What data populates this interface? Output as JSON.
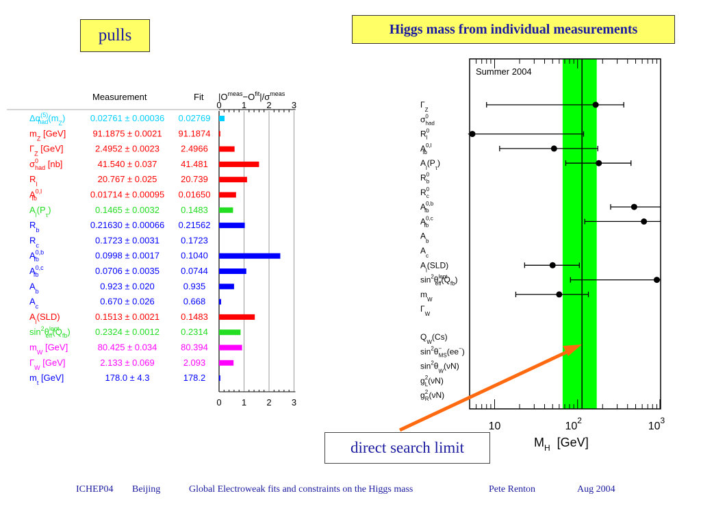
{
  "left_title": "pulls",
  "right_title": "Higgs mass from individual measurements",
  "annotation": "direct search limit",
  "footer": {
    "conf": "ICHEP04",
    "city": "Beijing",
    "talk": "Global Electroweak fits and constraints on the Higgs mass",
    "author": "Pete Renton",
    "date": "Aug 2004"
  },
  "colors": {
    "cyan": "#00d0ff",
    "red": "#ff0000",
    "green": "#22dd22",
    "blue": "#0000ff",
    "magenta": "#ff00ff",
    "band": "#00ff00"
  },
  "chart_data": [
    {
      "type": "table",
      "headers": {
        "measurement": "Measurement",
        "fit": "Fit",
        "pull_num": "|O",
        "meas_sup": "meas",
        "minus": "−O",
        "fit_sup": "fit",
        "slash": "|/σ",
        "meas_sup2": "meas"
      },
      "axis": {
        "range": [
          0,
          3
        ],
        "ticks": [
          "0",
          "1",
          "2",
          "3"
        ],
        "grid": true
      },
      "rows": [
        {
          "label": "Δα",
          "sup": "(5)",
          "sub": "had",
          "tail": "(m",
          "tail_sub": "Z",
          "tail_end": ")",
          "unit": "",
          "measurement": "0.02761 ± 0.00036",
          "fit": "0.02769",
          "pull": 0.22,
          "color": "cyan"
        },
        {
          "label": "m",
          "sup": "",
          "sub": "Z",
          "tail": "",
          "tail_sub": "",
          "tail_end": "",
          "unit": " [GeV]",
          "measurement": "91.1875 ± 0.0021",
          "fit": "91.1874",
          "pull": 0.05,
          "color": "red"
        },
        {
          "label": "Γ",
          "sup": "",
          "sub": "Z",
          "tail": "",
          "tail_sub": "",
          "tail_end": "",
          "unit": " [GeV]",
          "measurement": "2.4952 ± 0.0023",
          "fit": "2.4966",
          "pull": 0.62,
          "color": "red"
        },
        {
          "label": "σ",
          "sup": "0",
          "sub": "had",
          "tail": "",
          "tail_sub": "",
          "tail_end": "",
          "unit": " [nb]",
          "measurement": "41.540 ± 0.037",
          "fit": "41.481",
          "pull": 1.6,
          "color": "red"
        },
        {
          "label": "R",
          "sup": "",
          "sub": "l",
          "tail": "",
          "tail_sub": "",
          "tail_end": "",
          "unit": "",
          "measurement": "20.767 ± 0.025",
          "fit": "20.739",
          "pull": 1.12,
          "color": "red"
        },
        {
          "label": "A",
          "sup": "0,l",
          "sub": "fb",
          "tail": "",
          "tail_sub": "",
          "tail_end": "",
          "unit": "",
          "measurement": "0.01714 ± 0.00095",
          "fit": "0.01650",
          "pull": 0.68,
          "color": "red"
        },
        {
          "label": "A",
          "sup": "",
          "sub": "l",
          "tail": "(P",
          "tail_sub": "τ",
          "tail_end": ")",
          "unit": "",
          "measurement": "0.1465 ± 0.0032",
          "fit": "0.1483",
          "pull": 0.56,
          "color": "green"
        },
        {
          "label": "R",
          "sup": "",
          "sub": "b",
          "tail": "",
          "tail_sub": "",
          "tail_end": "",
          "unit": "",
          "measurement": "0.21630 ± 0.00066",
          "fit": "0.21562",
          "pull": 1.03,
          "color": "blue"
        },
        {
          "label": "R",
          "sup": "",
          "sub": "c",
          "tail": "",
          "tail_sub": "",
          "tail_end": "",
          "unit": "",
          "measurement": "0.1723 ± 0.0031",
          "fit": "0.1723",
          "pull": 0.0,
          "color": "blue"
        },
        {
          "label": "A",
          "sup": "0,b",
          "sub": "fb",
          "tail": "",
          "tail_sub": "",
          "tail_end": "",
          "unit": "",
          "measurement": "0.0998 ± 0.0017",
          "fit": "0.1040",
          "pull": 2.45,
          "color": "blue"
        },
        {
          "label": "A",
          "sup": "0,c",
          "sub": "fb",
          "tail": "",
          "tail_sub": "",
          "tail_end": "",
          "unit": "",
          "measurement": "0.0706 ± 0.0035",
          "fit": "0.0744",
          "pull": 1.09,
          "color": "blue"
        },
        {
          "label": "A",
          "sup": "",
          "sub": "b",
          "tail": "",
          "tail_sub": "",
          "tail_end": "",
          "unit": "",
          "measurement": "0.923 ± 0.020",
          "fit": "0.935",
          "pull": 0.6,
          "color": "blue"
        },
        {
          "label": "A",
          "sup": "",
          "sub": "c",
          "tail": "",
          "tail_sub": "",
          "tail_end": "",
          "unit": "",
          "measurement": "0.670 ± 0.026",
          "fit": "0.668",
          "pull": 0.08,
          "color": "blue"
        },
        {
          "label": "A",
          "sup": "",
          "sub": "l",
          "tail": "(SLD)",
          "tail_sub": "",
          "tail_end": "",
          "unit": "",
          "measurement": "0.1513 ± 0.0021",
          "fit": "0.1483",
          "pull": 1.43,
          "color": "red"
        },
        {
          "label": "sin",
          "sup": "2",
          "sub": "",
          "tail": "θ",
          "tail_sup": "lept",
          "tail_sub": "eff",
          "tail_end": "(Q",
          "tail2_sub": "fb",
          "tail2_end": ")",
          "unit": "",
          "measurement": "0.2324 ± 0.0012",
          "fit": "0.2314",
          "pull": 0.86,
          "color": "green"
        },
        {
          "label": "m",
          "sup": "",
          "sub": "W",
          "tail": "",
          "tail_sub": "",
          "tail_end": "",
          "unit": " [GeV]",
          "measurement": "80.425 ± 0.034",
          "fit": "80.394",
          "pull": 0.92,
          "color": "magenta"
        },
        {
          "label": "Γ",
          "sup": "",
          "sub": "W",
          "tail": "",
          "tail_sub": "",
          "tail_end": "",
          "unit": " [GeV]",
          "measurement": "2.133 ± 0.069",
          "fit": "2.093",
          "pull": 0.58,
          "color": "magenta"
        },
        {
          "label": "m",
          "sup": "",
          "sub": "t",
          "tail": "",
          "tail_sub": "",
          "tail_end": "",
          "unit": " [GeV]",
          "measurement": "178.0 ± 4.3",
          "fit": "178.2",
          "pull": 0.05,
          "color": "blue"
        }
      ]
    },
    {
      "type": "scatter",
      "title": "Summer 2004",
      "x_scale": "log",
      "xlim": [
        5,
        1000
      ],
      "xlabel": "M",
      "xlabel_sub": "H",
      "xlabel_unit": "[GeV]",
      "x_ticks": [
        {
          "value": 10,
          "base": "10",
          "exp": ""
        },
        {
          "value": 100,
          "base": "10",
          "exp": "2"
        },
        {
          "value": 1000,
          "base": "10",
          "exp": "3"
        }
      ],
      "band": {
        "low": 66,
        "high": 170,
        "line": 113
      },
      "points": [
        {
          "name": "Γ",
          "sub": "Z",
          "sup": "",
          "tail": "",
          "x": 165,
          "lo": 8,
          "hi": 360
        },
        {
          "name": "σ",
          "sub": "had",
          "sup": "0",
          "tail": "",
          "x": null,
          "lo": null,
          "hi": null
        },
        {
          "name": "R",
          "sub": "l",
          "sup": "0",
          "tail": "",
          "x": 4.8,
          "lo": 4.8,
          "hi": 118
        },
        {
          "name": "A",
          "sub": "fb",
          "sup": "0,l",
          "tail": "",
          "x": 52,
          "lo": 11.5,
          "hi": 175
        },
        {
          "name": "A",
          "sub": "l",
          "sup": "",
          "tail": "(P",
          "tail_sub": "τ",
          "tail_end": ")",
          "x": 180,
          "lo": 72,
          "hi": 440
        },
        {
          "name": "R",
          "sub": "b",
          "sup": "0",
          "tail": "",
          "x": null,
          "lo": null,
          "hi": null
        },
        {
          "name": "R",
          "sub": "c",
          "sup": "0",
          "tail": "",
          "x": null,
          "lo": null,
          "hi": null
        },
        {
          "name": "A",
          "sub": "fb",
          "sup": "0,b",
          "tail": "",
          "x": 480,
          "lo": 250,
          "hi": 1000
        },
        {
          "name": "A",
          "sub": "fb",
          "sup": "0,c",
          "tail": "",
          "x": 630,
          "lo": 122,
          "hi": 1000
        },
        {
          "name": "A",
          "sub": "b",
          "sup": "",
          "tail": "",
          "x": null,
          "lo": null,
          "hi": null
        },
        {
          "name": "A",
          "sub": "c",
          "sup": "",
          "tail": "",
          "x": null,
          "lo": null,
          "hi": null
        },
        {
          "name": "A",
          "sub": "l",
          "sup": "",
          "tail": "(SLD)",
          "x": 50,
          "lo": 23,
          "hi": 105
        },
        {
          "name": "sin",
          "sub": "",
          "sup": "2",
          "tail": "θ",
          "tail_sup": "lept",
          "tail_sub": "eff",
          "tail_end": "(Q",
          "tail2_sub": "fb",
          "tail2_end": ")",
          "x": 900,
          "lo": 82,
          "hi": 1000
        },
        {
          "name": "m",
          "sub": "W",
          "sup": "",
          "tail": "",
          "x": 60,
          "lo": 18,
          "hi": 135
        },
        {
          "name": "Γ",
          "sub": "W",
          "sup": "",
          "tail": "",
          "x": null,
          "lo": null,
          "hi": null
        }
      ],
      "extra_labels": [
        {
          "name": "Q",
          "sub": "W",
          "tail": "(Cs)"
        },
        {
          "name": "sin",
          "sup": "2",
          "tail": "θ",
          "tail_sub": "MS",
          "tail_end": "(e",
          "tail_sup": "−",
          "tail2": "e",
          "tail2_sup": "−",
          "tail2_end": ")"
        },
        {
          "name": "sin",
          "sup": "2",
          "tail": "θ",
          "tail_sub": "W",
          "tail_end": "(νN)"
        },
        {
          "name": "g",
          "sup": "2",
          "sub": "L",
          "tail": "(νN)"
        },
        {
          "name": "g",
          "sup": "2",
          "sub": "R",
          "tail": "(νN)"
        }
      ]
    }
  ]
}
